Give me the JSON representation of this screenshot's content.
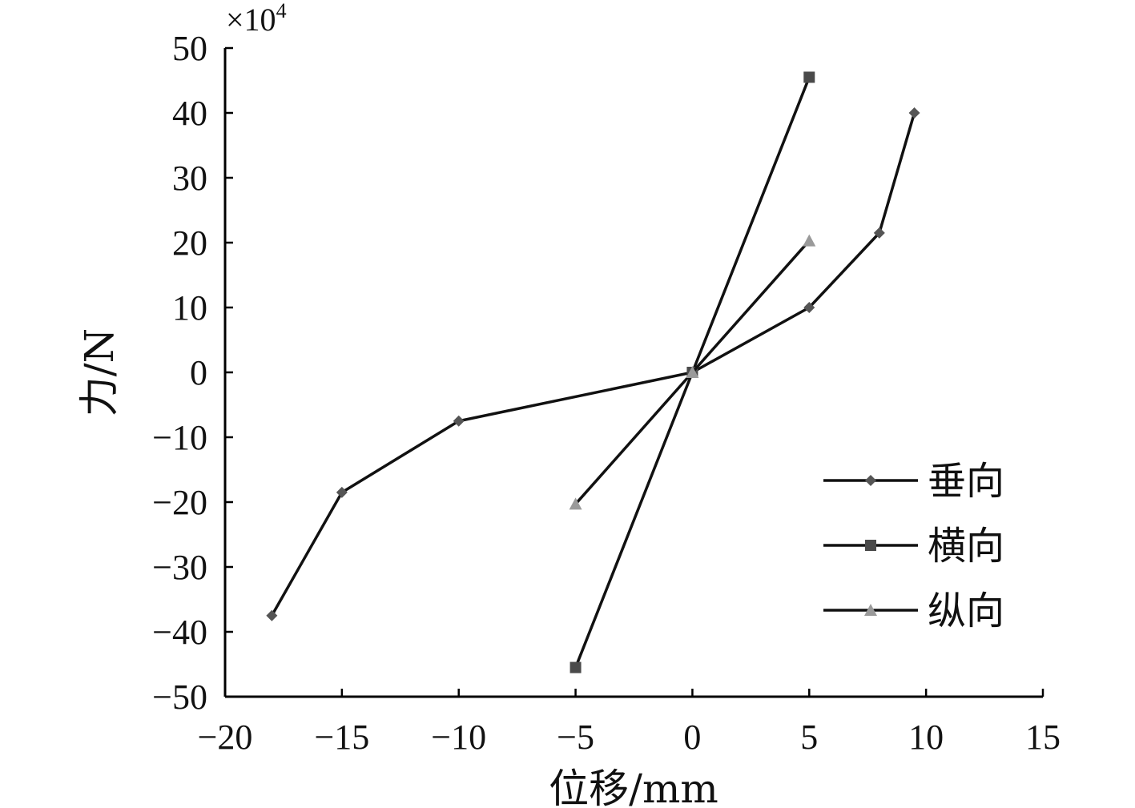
{
  "chart_data": {
    "type": "line",
    "xlabel": "位移/mm",
    "ylabel": "力/N",
    "y_multiplier": "×10",
    "y_multiplier_exponent": "4",
    "xlim": [
      -20,
      15
    ],
    "ylim": [
      -50,
      50
    ],
    "x_ticks": [
      -20,
      -15,
      -10,
      -5,
      0,
      5,
      10,
      15
    ],
    "y_ticks": [
      -50,
      -40,
      -30,
      -20,
      -10,
      0,
      10,
      20,
      30,
      40,
      50
    ],
    "x_tick_labels": [
      "−20",
      "−15",
      "−10",
      "−5",
      "0",
      "5",
      "10",
      "15"
    ],
    "y_tick_labels": [
      "−50",
      "−40",
      "−30",
      "−20",
      "−10",
      "0",
      "10",
      "20",
      "30",
      "40",
      "50"
    ],
    "grid": false,
    "legend_position": "bottom-right",
    "series": [
      {
        "name": "垂向",
        "marker": "diamond",
        "color": "#555555",
        "x": [
          -18,
          -15,
          -10,
          0,
          5,
          8,
          9.5
        ],
        "y": [
          -37.5,
          -18.5,
          -7.5,
          0,
          10,
          21.5,
          40
        ]
      },
      {
        "name": "横向",
        "marker": "square",
        "color": "#4a4a4a",
        "x": [
          -5,
          0,
          5
        ],
        "y": [
          -45.5,
          0,
          45.5
        ]
      },
      {
        "name": "纵向",
        "marker": "triangle",
        "color": "#9a9a9a",
        "x": [
          -5,
          0,
          5
        ],
        "y": [
          -20.3,
          0,
          20.3
        ]
      }
    ]
  }
}
